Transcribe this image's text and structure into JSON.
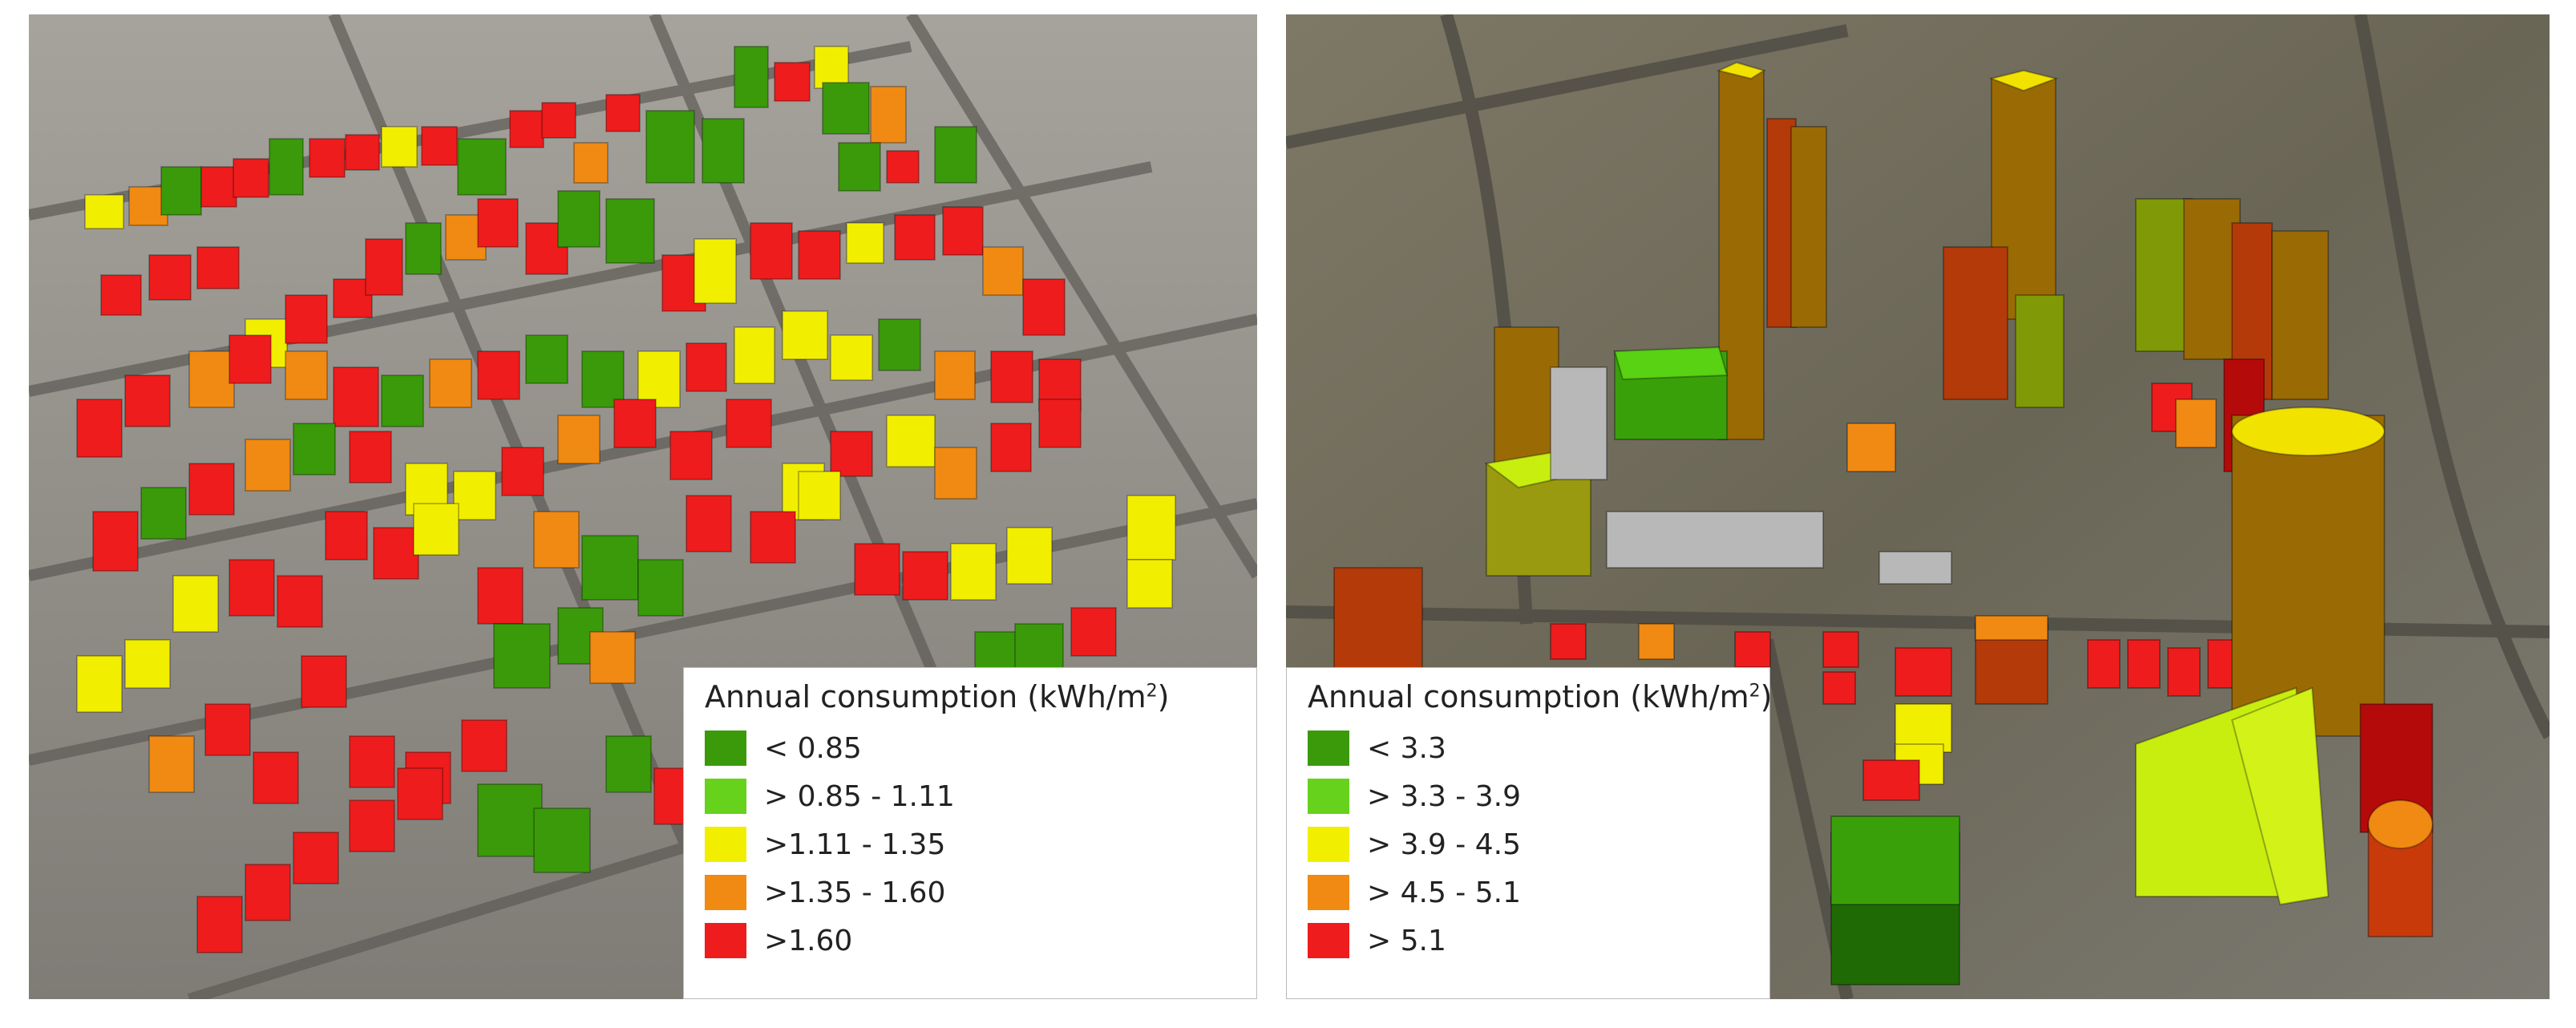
{
  "legends": {
    "left": {
      "title": "Annual consumption (kWh/m",
      "title_sup": "2",
      "title_end": ")",
      "items": [
        {
          "label": "< 0.85",
          "color": "#3a9a0a"
        },
        {
          "label": "> 0.85 - 1.11",
          "color": "#66d21c"
        },
        {
          "label": ">1.11 - 1.35",
          "color": "#f2ee00"
        },
        {
          "label": ">1.35 - 1.60",
          "color": "#f08a12"
        },
        {
          "label": ">1.60",
          "color": "#ee1c1c"
        }
      ]
    },
    "right": {
      "title": "Annual consumption (kWh/m",
      "title_sup": "2",
      "title_end": ")",
      "items": [
        {
          "label": "< 3.3",
          "color": "#3a9a0a"
        },
        {
          "label": "> 3.3 - 3.9",
          "color": "#66d21c"
        },
        {
          "label": "> 3.9 - 4.5",
          "color": "#f2ee00"
        },
        {
          "label": "> 4.5 - 5.1",
          "color": "#f08a12"
        },
        {
          "label": "> 5.1",
          "color": "#ee1c1c"
        }
      ]
    }
  }
}
